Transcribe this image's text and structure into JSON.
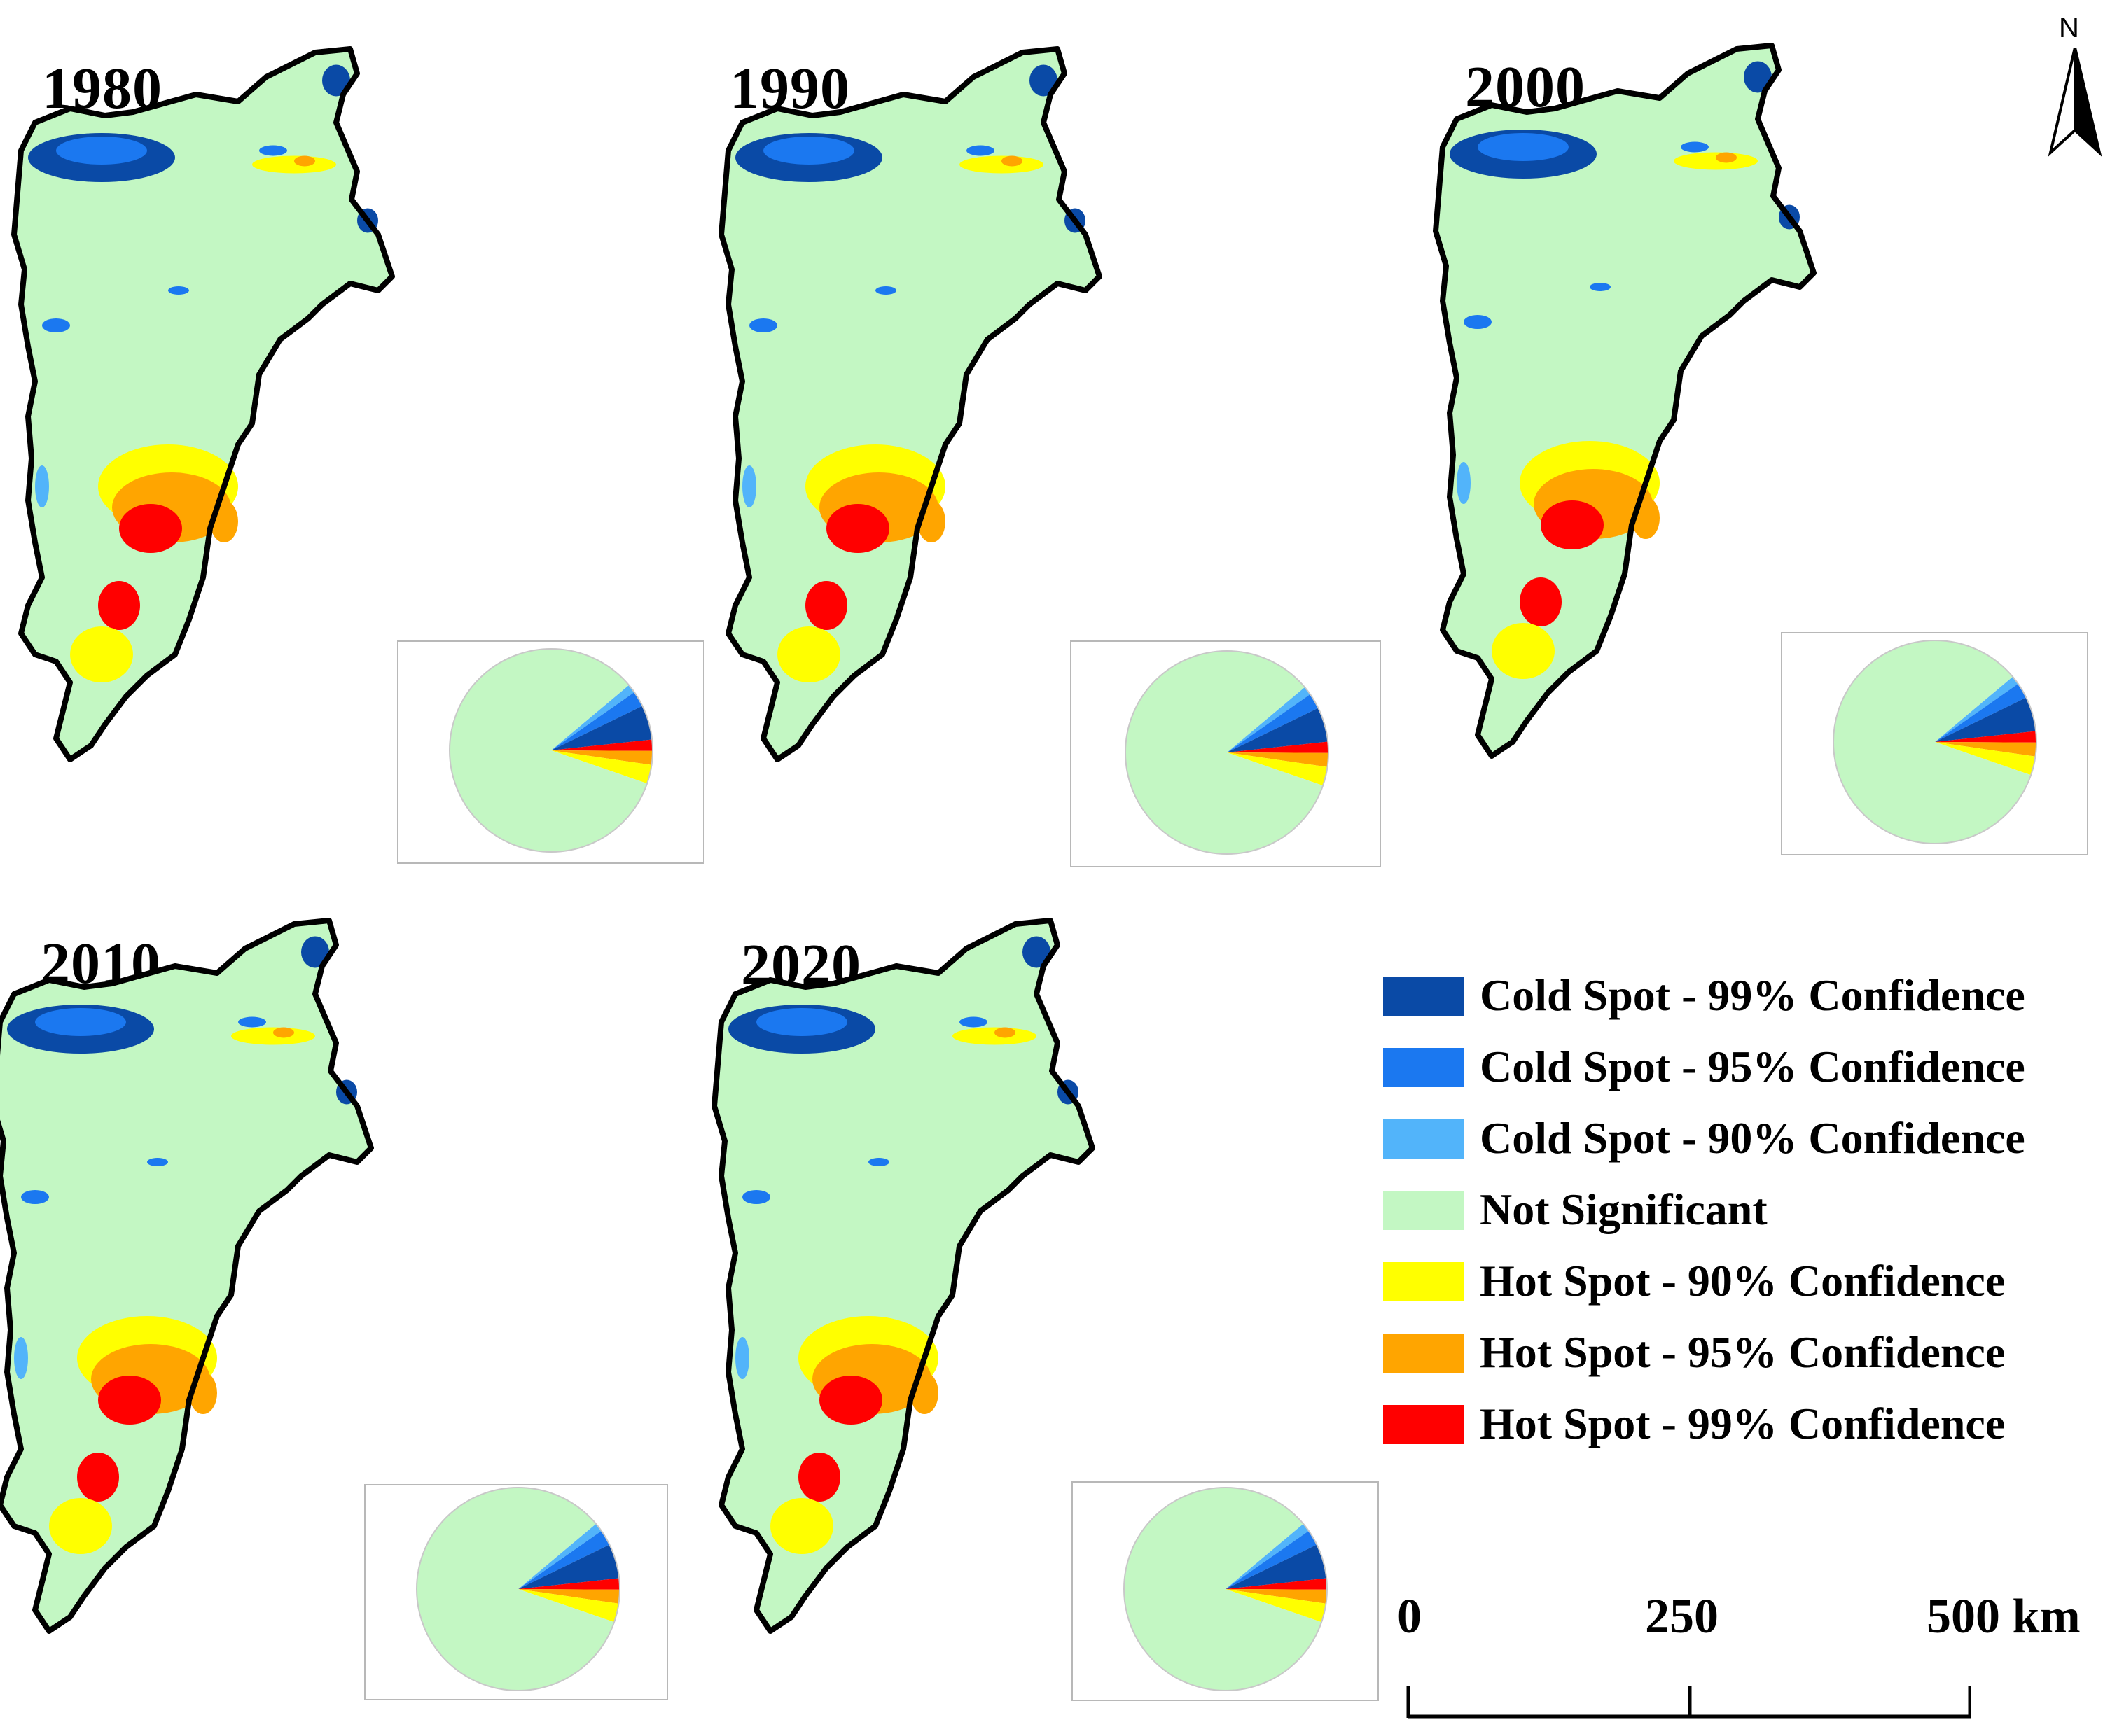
{
  "panels": [
    {
      "year": "1980"
    },
    {
      "year": "1990"
    },
    {
      "year": "2000"
    },
    {
      "year": "2010"
    },
    {
      "year": "2020"
    }
  ],
  "categories": [
    {
      "label": "Cold Spot - 99% Confidence",
      "color": "#0a4aa6",
      "share": 0.055
    },
    {
      "label": "Cold Spot - 95% Confidence",
      "color": "#1b78f0",
      "share": 0.025
    },
    {
      "label": "Cold Spot - 90% Confidence",
      "color": "#52b4fa",
      "share": 0.014
    },
    {
      "label": "Not Significant",
      "color": "#c3f7c3",
      "share": 0.836
    },
    {
      "label": "Hot Spot - 90% Confidence",
      "color": "#ffff00",
      "share": 0.03
    },
    {
      "label": "Hot Spot - 95% Confidence",
      "color": "#ffa500",
      "share": 0.022
    },
    {
      "label": "Hot Spot - 99% Confidence",
      "color": "#ff0000",
      "share": 0.018
    }
  ],
  "scale_bar": {
    "labels": [
      "0",
      "250",
      "500 km"
    ]
  },
  "north_arrow": {
    "label": "N"
  }
}
